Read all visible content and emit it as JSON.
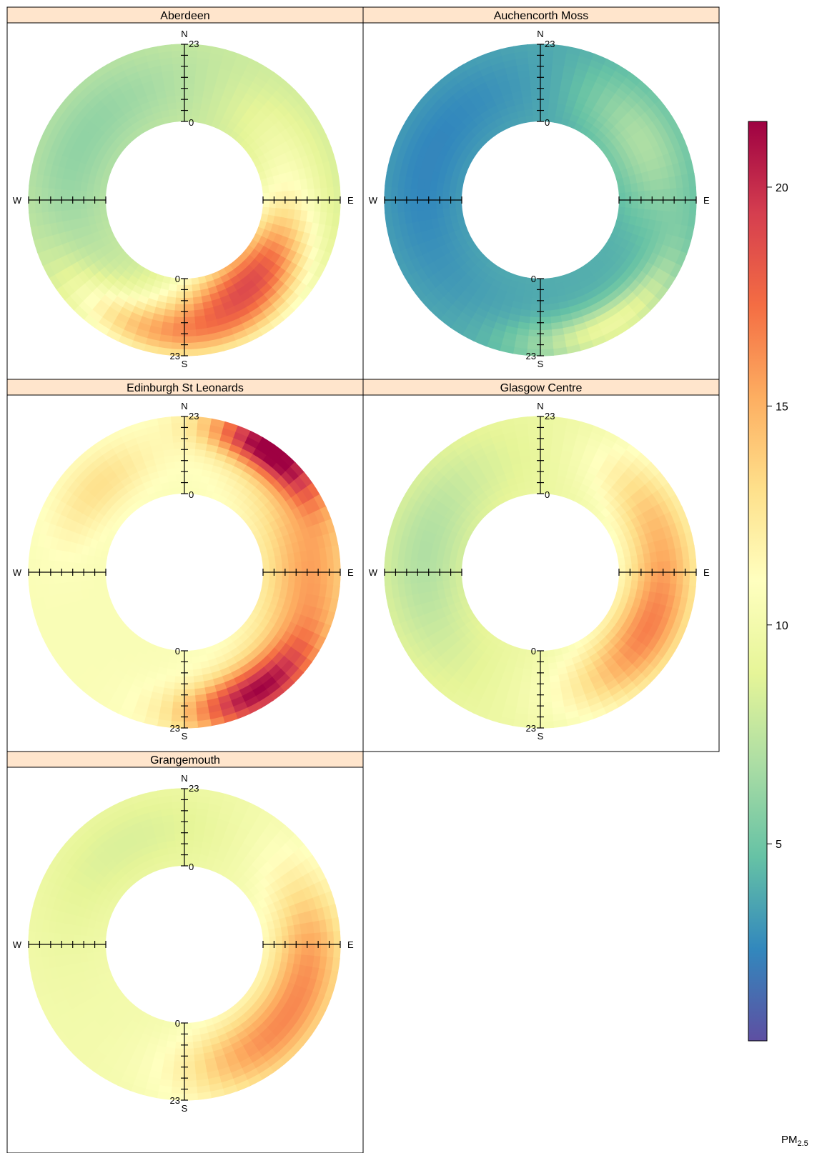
{
  "chart_data": {
    "type": "heatmap",
    "subtype": "polar-annulus",
    "description_note": "",
    "value_label": "PM2.5",
    "legend": {
      "title_main": "PM",
      "title_sub": "2.5",
      "ticks": [
        5,
        10,
        15,
        20
      ],
      "range": [
        0.5,
        21.5
      ],
      "palette": [
        "#5E4FA2",
        "#3288BD",
        "#66C2A5",
        "#ABDDA4",
        "#E6F598",
        "#FFFFBF",
        "#FEE08B",
        "#FDAE61",
        "#F46D43",
        "#D53E4F",
        "#9E0142"
      ],
      "placement": "right"
    },
    "radial_axis": {
      "min_label": "0",
      "max_label": "23"
    },
    "directions": {
      "n": "N",
      "s": "S",
      "e": "E",
      "w": "W"
    },
    "panels": [
      {
        "name": "Aberdeen",
        "hotspots": [
          {
            "angle": 135,
            "radius": 0.25,
            "value": 16.5,
            "spread_deg": 45,
            "spread_r": 0.45
          },
          {
            "angle": 160,
            "radius": 0.65,
            "value": 13.5,
            "spread_deg": 40,
            "spread_r": 0.45
          },
          {
            "angle": 200,
            "radius": 0.75,
            "value": 12.5,
            "spread_deg": 35,
            "spread_r": 0.35
          },
          {
            "angle": 60,
            "radius": 0.4,
            "value": 9.5,
            "spread_deg": 40,
            "spread_r": 0.5
          },
          {
            "angle": 300,
            "radius": 0.5,
            "value": 6.0,
            "spread_deg": 70,
            "spread_r": 0.6
          }
        ],
        "base": 8.0
      },
      {
        "name": "Auchencorth Moss",
        "hotspots": [
          {
            "angle": 150,
            "radius": 0.85,
            "value": 9.5,
            "spread_deg": 35,
            "spread_r": 0.3
          },
          {
            "angle": 60,
            "radius": 0.5,
            "value": 7.0,
            "spread_deg": 40,
            "spread_r": 0.5
          },
          {
            "angle": 290,
            "radius": 0.5,
            "value": 2.5,
            "spread_deg": 80,
            "spread_r": 0.6
          }
        ],
        "base": 4.0
      },
      {
        "name": "Edinburgh St Leonards",
        "hotspots": [
          {
            "angle": 35,
            "radius": 0.9,
            "value": 21.0,
            "spread_deg": 25,
            "spread_r": 0.3
          },
          {
            "angle": 150,
            "radius": 0.8,
            "value": 20.0,
            "spread_deg": 30,
            "spread_r": 0.35
          },
          {
            "angle": 90,
            "radius": 0.6,
            "value": 15.5,
            "spread_deg": 55,
            "spread_r": 0.6
          },
          {
            "angle": 315,
            "radius": 0.55,
            "value": 13.0,
            "spread_deg": 30,
            "spread_r": 0.4
          }
        ],
        "base": 10.5
      },
      {
        "name": "Glasgow Centre",
        "hotspots": [
          {
            "angle": 120,
            "radius": 0.55,
            "value": 16.5,
            "spread_deg": 45,
            "spread_r": 0.5
          },
          {
            "angle": 60,
            "radius": 0.6,
            "value": 13.0,
            "spread_deg": 35,
            "spread_r": 0.5
          },
          {
            "angle": 280,
            "radius": 0.5,
            "value": 7.0,
            "spread_deg": 60,
            "spread_r": 0.6
          }
        ],
        "base": 9.5
      },
      {
        "name": "Grangemouth",
        "hotspots": [
          {
            "angle": 100,
            "radius": 0.6,
            "value": 15.5,
            "spread_deg": 45,
            "spread_r": 0.5
          },
          {
            "angle": 150,
            "radius": 0.6,
            "value": 14.0,
            "spread_deg": 35,
            "spread_r": 0.5
          },
          {
            "angle": 330,
            "radius": 0.5,
            "value": 8.5,
            "spread_deg": 60,
            "spread_r": 0.6
          }
        ],
        "base": 10.0
      }
    ]
  }
}
